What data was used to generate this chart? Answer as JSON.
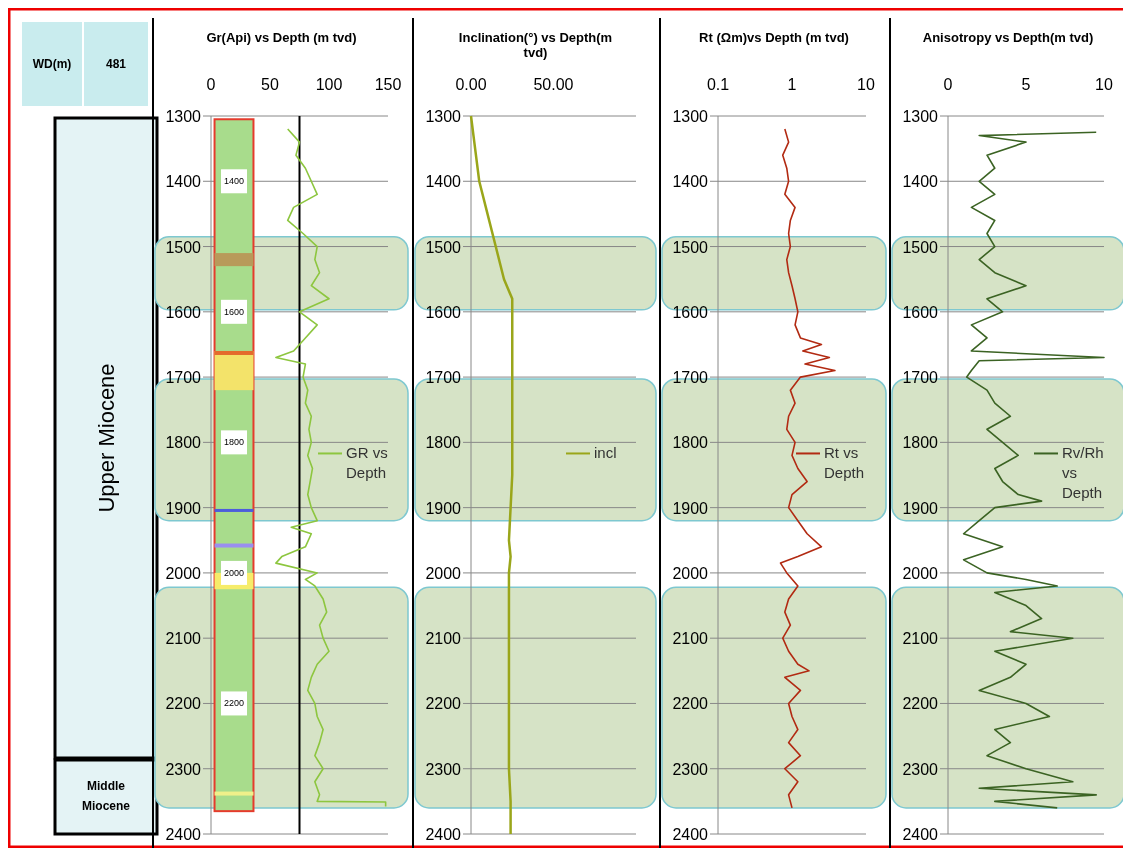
{
  "chart_data": [
    {
      "type": "other",
      "annotations": [
        "WD(m)",
        "481",
        "Upper Miocene",
        "Middle Miocene"
      ]
    },
    {
      "type": "line",
      "title": "Gr(Api) vs Depth (m tvd)",
      "xlim": [
        0,
        150
      ],
      "xticks": [
        0,
        50,
        100,
        150
      ],
      "ylim": [
        2400,
        1300
      ],
      "yticks": [
        1300,
        1400,
        1500,
        1600,
        1700,
        1800,
        1900,
        2000,
        2100,
        2200,
        2300,
        2400
      ],
      "grid": "y",
      "legend": "right",
      "ref_lines": [
        {
          "axis": "x",
          "value": 75,
          "color": "#000000"
        }
      ],
      "bands": [
        {
          "axis": "y",
          "from": 1485,
          "to": 1597,
          "color": "#d6e3c6"
        },
        {
          "axis": "y",
          "from": 1703,
          "to": 1920,
          "color": "#d6e3c6"
        },
        {
          "axis": "y",
          "from": 2022,
          "to": 2360,
          "color": "#d6e3c6"
        }
      ],
      "annotations": [
        {
          "text": "1400",
          "y": 1400
        },
        {
          "text": "1600",
          "y": 1600
        },
        {
          "text": "1800",
          "y": 1800
        },
        {
          "text": "2000",
          "y": 2000
        },
        {
          "text": "2200",
          "y": 2200
        }
      ],
      "series": [
        {
          "name": "GR vs Depth",
          "color": "#8dc63f",
          "x": [
            65,
            75,
            72,
            80,
            85,
            90,
            70,
            65,
            78,
            90,
            88,
            92,
            85,
            100,
            75,
            90,
            80,
            70,
            55,
            80,
            78,
            82,
            80,
            85,
            83,
            85,
            82,
            86,
            84,
            82,
            85,
            90,
            68,
            85,
            80,
            60,
            55,
            90,
            80,
            88,
            95,
            98,
            92,
            95,
            100,
            90,
            85,
            82,
            88,
            90,
            95,
            92,
            88,
            95,
            88,
            92,
            90,
            148,
            148
          ],
          "values": [
            1320,
            1340,
            1360,
            1380,
            1400,
            1420,
            1440,
            1460,
            1480,
            1500,
            1520,
            1540,
            1560,
            1580,
            1600,
            1620,
            1640,
            1660,
            1670,
            1680,
            1700,
            1720,
            1740,
            1760,
            1780,
            1800,
            1820,
            1840,
            1860,
            1880,
            1900,
            1920,
            1930,
            1940,
            1960,
            1975,
            1985,
            2000,
            2010,
            2020,
            2040,
            2060,
            2080,
            2100,
            2120,
            2140,
            2160,
            2180,
            2200,
            2220,
            2240,
            2260,
            2280,
            2300,
            2320,
            2340,
            2350,
            2351,
            2358
          ]
        }
      ]
    },
    {
      "type": "line",
      "title": "Inclination(°) vs Depth(m tvd)",
      "xlim": [
        0,
        100
      ],
      "xticks": [
        {
          "value": 0,
          "label": "0.00"
        },
        {
          "value": 50,
          "label": "50.00"
        }
      ],
      "ylim": [
        2400,
        1300
      ],
      "yticks": [
        1300,
        1400,
        1500,
        1600,
        1700,
        1800,
        1900,
        2000,
        2100,
        2200,
        2300,
        2400
      ],
      "grid": "y",
      "legend": "right",
      "bands": [
        {
          "axis": "y",
          "from": 1485,
          "to": 1597,
          "color": "#d6e3c6"
        },
        {
          "axis": "y",
          "from": 1703,
          "to": 1920,
          "color": "#d6e3c6"
        },
        {
          "axis": "y",
          "from": 2022,
          "to": 2360,
          "color": "#d6e3c6"
        }
      ],
      "series": [
        {
          "name": "incl",
          "color": "#9aa61a",
          "x": [
            0,
            2,
            5,
            10,
            15,
            20,
            25,
            25,
            25,
            24,
            23,
            24,
            23,
            23,
            23,
            24,
            24
          ],
          "values": [
            1300,
            1340,
            1400,
            1450,
            1500,
            1550,
            1580,
            1700,
            1850,
            1900,
            1950,
            1975,
            2000,
            2200,
            2300,
            2350,
            2400
          ]
        }
      ]
    },
    {
      "type": "line",
      "title": "Rt (Ωm)vs Depth (m tvd)",
      "log": "x",
      "xlim": [
        0.1,
        10
      ],
      "xticks": [
        0.1,
        1,
        10
      ],
      "ylim": [
        2400,
        1300
      ],
      "yticks": [
        1300,
        1400,
        1500,
        1600,
        1700,
        1800,
        1900,
        2000,
        2100,
        2200,
        2300,
        2400
      ],
      "grid": "y",
      "legend": "right",
      "bands": [
        {
          "axis": "y",
          "from": 1485,
          "to": 1597,
          "color": "#d6e3c6"
        },
        {
          "axis": "y",
          "from": 1703,
          "to": 1920,
          "color": "#d6e3c6"
        },
        {
          "axis": "y",
          "from": 2022,
          "to": 2360,
          "color": "#d6e3c6"
        }
      ],
      "series": [
        {
          "name": "Rt vs Depth",
          "color": "#b22a12",
          "x": [
            0.8,
            0.9,
            0.75,
            0.85,
            0.9,
            0.8,
            1.1,
            0.95,
            0.9,
            0.95,
            0.85,
            0.9,
            1.0,
            1.1,
            1.2,
            1.1,
            1.3,
            2.5,
            1.4,
            3.2,
            1.5,
            3.8,
            1.3,
            0.95,
            1.1,
            0.9,
            0.85,
            1.1,
            1.0,
            1.2,
            1.6,
            1.0,
            0.9,
            1.2,
            1.6,
            2.5,
            1.2,
            0.7,
            0.85,
            1.2,
            0.9,
            0.8,
            0.95,
            0.75,
            0.9,
            1.2,
            1.7,
            0.8,
            1.3,
            0.9,
            1.0,
            1.2,
            0.9,
            1.3,
            0.8,
            1.2,
            0.9,
            1.0
          ],
          "values": [
            1320,
            1340,
            1360,
            1380,
            1400,
            1420,
            1440,
            1460,
            1480,
            1500,
            1520,
            1540,
            1560,
            1580,
            1600,
            1620,
            1640,
            1650,
            1660,
            1670,
            1680,
            1690,
            1700,
            1720,
            1740,
            1760,
            1780,
            1800,
            1820,
            1840,
            1860,
            1880,
            1900,
            1920,
            1940,
            1960,
            1975,
            1985,
            2000,
            2020,
            2040,
            2060,
            2080,
            2100,
            2120,
            2140,
            2150,
            2160,
            2180,
            2200,
            2220,
            2240,
            2260,
            2280,
            2300,
            2320,
            2340,
            2360
          ]
        }
      ]
    },
    {
      "type": "line",
      "title": "Anisotropy vs Depth(m tvd)",
      "xlim": [
        0,
        10
      ],
      "xticks": [
        0,
        5,
        10
      ],
      "ylim": [
        2400,
        1300
      ],
      "yticks": [
        1300,
        1400,
        1500,
        1600,
        1700,
        1800,
        1900,
        2000,
        2100,
        2200,
        2300,
        2400
      ],
      "grid": "y",
      "legend": "right",
      "bands": [
        {
          "axis": "y",
          "from": 1485,
          "to": 1597,
          "color": "#d6e3c6"
        },
        {
          "axis": "y",
          "from": 1703,
          "to": 1920,
          "color": "#d6e3c6"
        },
        {
          "axis": "y",
          "from": 2022,
          "to": 2360,
          "color": "#d6e3c6"
        }
      ],
      "series": [
        {
          "name": "Rv/Rh vs Depth",
          "color": "#3b6323",
          "x": [
            9.5,
            2,
            5,
            2.5,
            3,
            2,
            3,
            1.5,
            3,
            2.5,
            3,
            2,
            3,
            5,
            2.5,
            3.5,
            1.5,
            2.5,
            1.5,
            10,
            2,
            1.5,
            1.2,
            2.5,
            3,
            4,
            2.5,
            3.5,
            4.5,
            3,
            3.5,
            4.5,
            6,
            3,
            2,
            1,
            3.5,
            1,
            2.5,
            5,
            7,
            3,
            5,
            6,
            4,
            8,
            3,
            5,
            4,
            2,
            5,
            6.5,
            3,
            4,
            2.5,
            5,
            8,
            2,
            9.5,
            3,
            7
          ],
          "values": [
            1325,
            1330,
            1340,
            1360,
            1380,
            1400,
            1420,
            1440,
            1460,
            1480,
            1500,
            1520,
            1540,
            1560,
            1580,
            1600,
            1620,
            1640,
            1660,
            1670,
            1675,
            1690,
            1700,
            1720,
            1740,
            1760,
            1780,
            1800,
            1820,
            1840,
            1860,
            1880,
            1890,
            1900,
            1920,
            1940,
            1960,
            1980,
            2000,
            2010,
            2020,
            2030,
            2050,
            2070,
            2090,
            2100,
            2120,
            2140,
            2160,
            2180,
            2200,
            2220,
            2240,
            2260,
            2280,
            2300,
            2320,
            2330,
            2340,
            2350,
            2360
          ]
        }
      ]
    }
  ]
}
